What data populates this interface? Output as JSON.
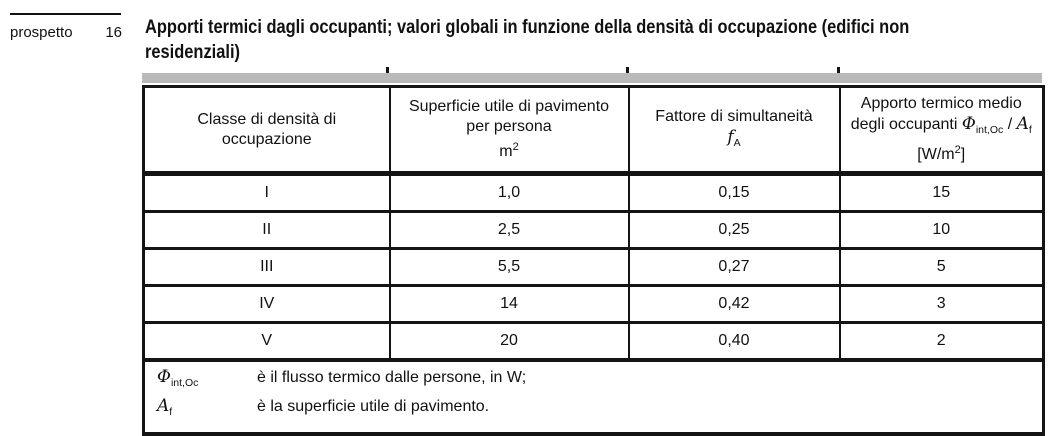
{
  "colors": {
    "background": "#ffffff",
    "band": "#b9b9b9",
    "border": "#141414",
    "text": "#111111"
  },
  "header": {
    "label": "prospetto",
    "number": "16",
    "title_line1": "Apporti termici dagli occupanti; valori globali in funzione della densità di occupazione (edifici non",
    "title_line2": "residenziali)"
  },
  "table": {
    "headers": [
      {
        "line1": "Classe di densità di",
        "line2": "occupazione"
      },
      {
        "line1": "Superficie utile di pavimento",
        "line2": "per persona",
        "unit_base": "m",
        "unit_exp": "2"
      },
      {
        "line1": "Fattore di simultaneità",
        "symbol": "f",
        "symbol_sub": "A"
      },
      {
        "line1": "Apporto termico medio",
        "line2_prefix": "degli occupanti ",
        "phi": "Φ",
        "phi_sub": "int,Oc",
        "slash": " / ",
        "area": "A",
        "area_sub": "f",
        "unit_open": "[W/m",
        "unit_exp": "2",
        "unit_close": "]"
      }
    ],
    "rows": [
      [
        "I",
        "1,0",
        "0,15",
        "15"
      ],
      [
        "II",
        "2,5",
        "0,25",
        "10"
      ],
      [
        "III",
        "5,5",
        "0,27",
        "5"
      ],
      [
        "IV",
        "14",
        "0,42",
        "3"
      ],
      [
        "V",
        "20",
        "0,40",
        "2"
      ]
    ]
  },
  "footnotes": [
    {
      "symbol": "Φ",
      "symbol_sub": "int,Oc",
      "text": "è il flusso termico dalle persone, in W;"
    },
    {
      "symbol": "A",
      "symbol_sub": "f",
      "text": "è la superficie utile di pavimento."
    }
  ]
}
